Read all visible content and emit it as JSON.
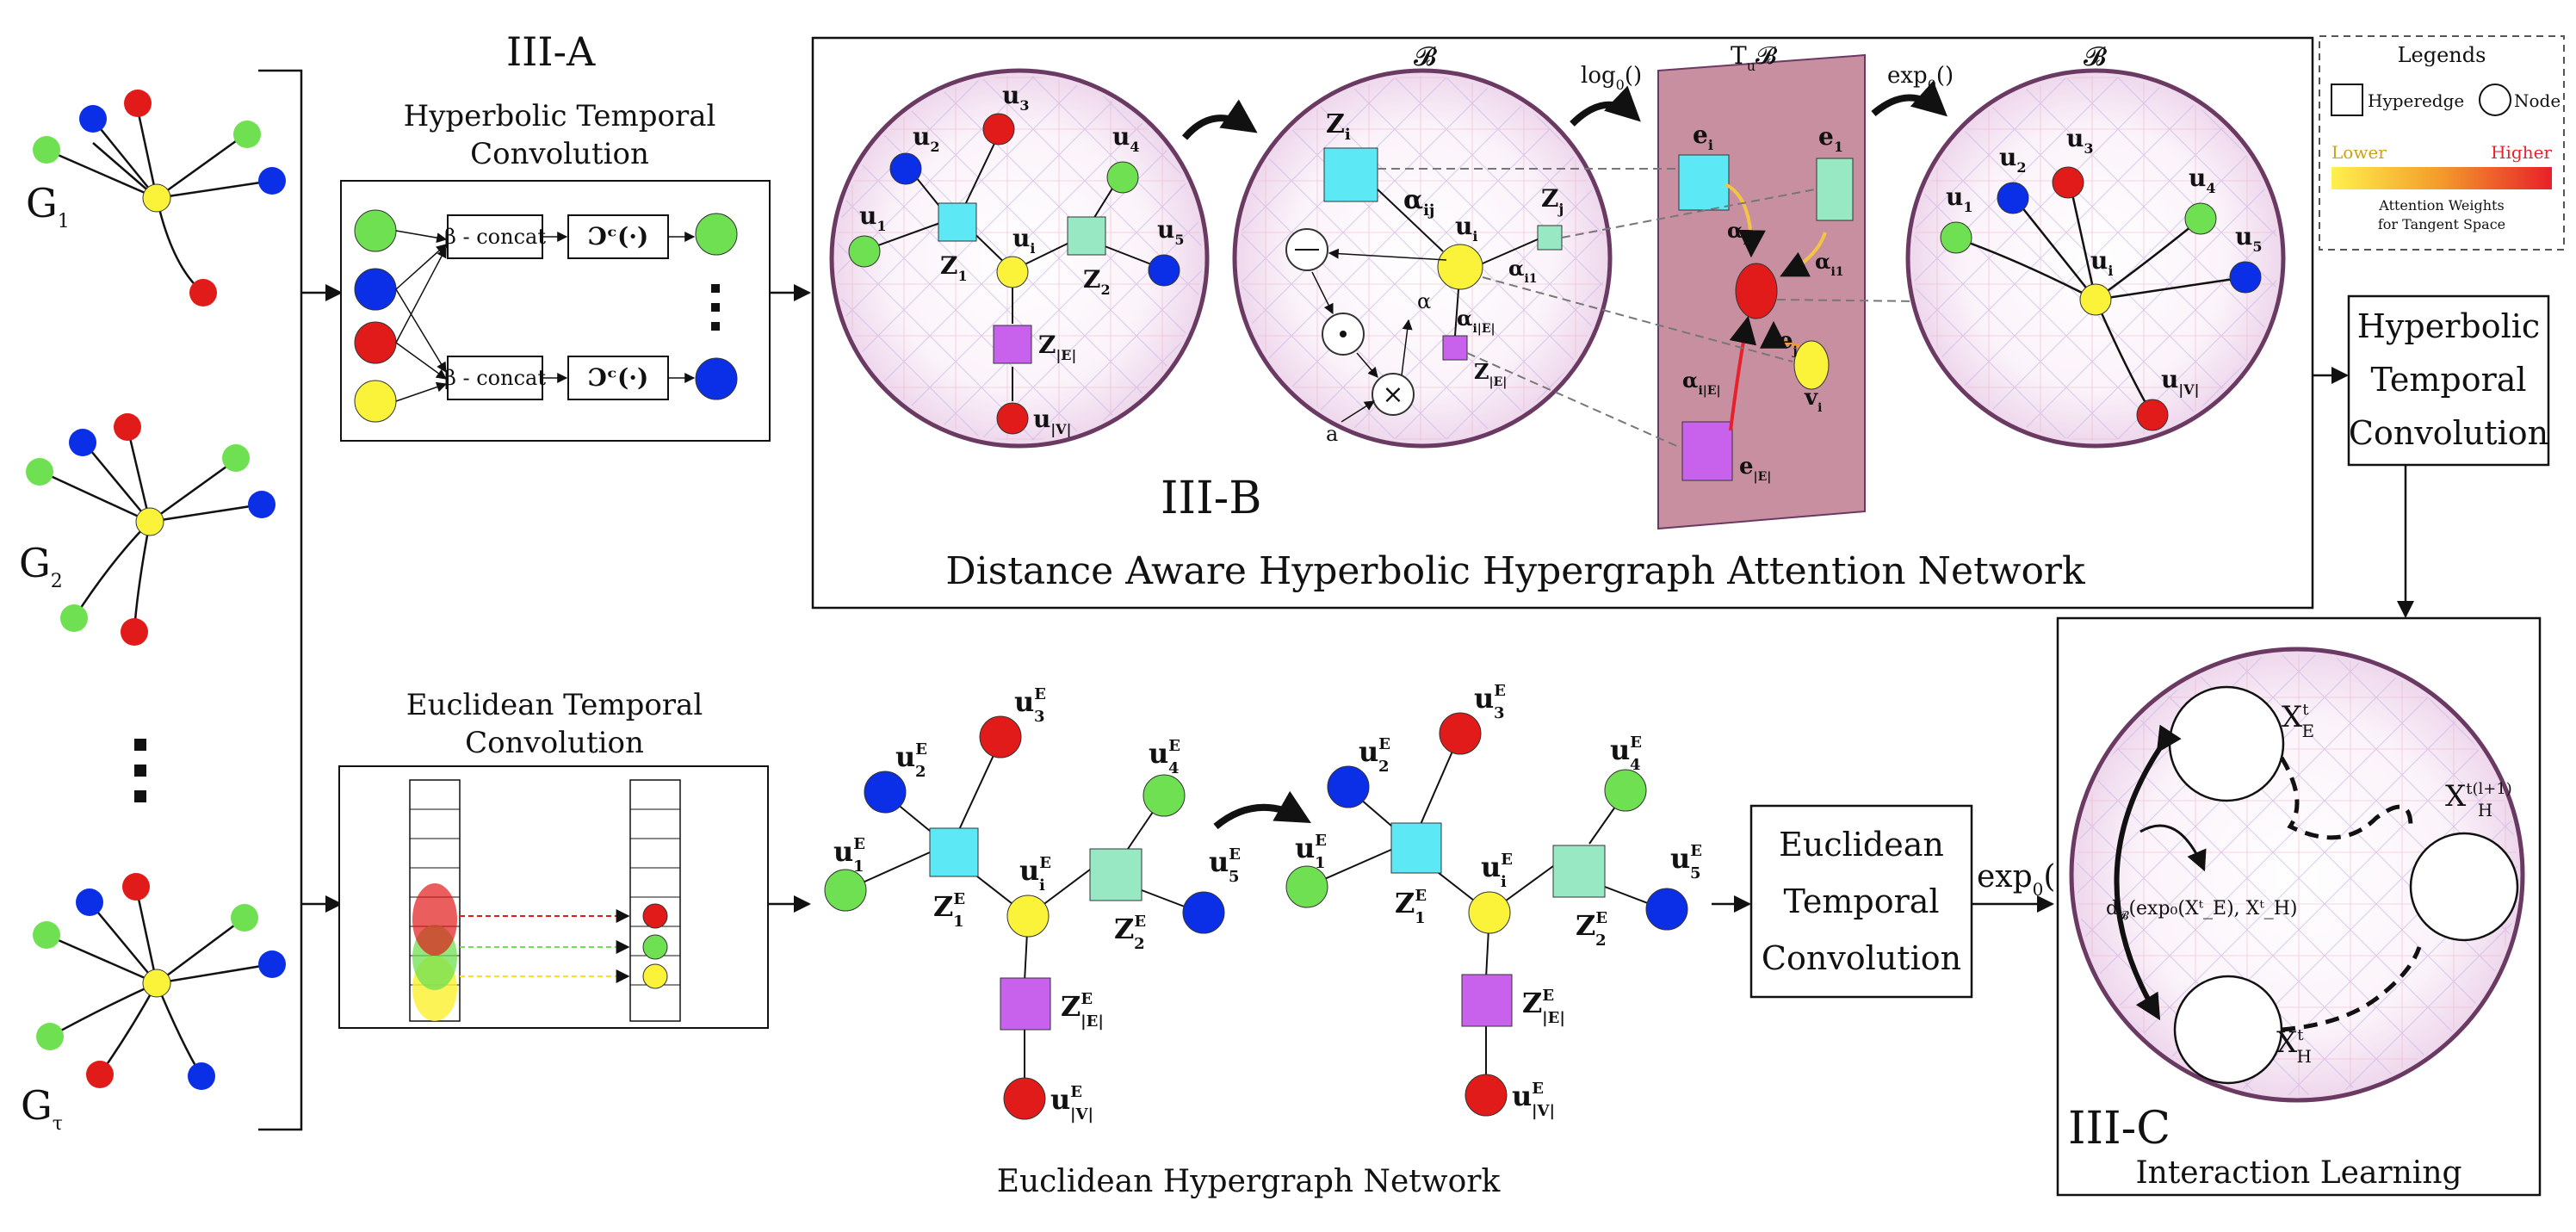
{
  "sections": {
    "a_label": "III-A",
    "b_label": "III-B",
    "c_label": "III-C"
  },
  "snapshots": {
    "g1": "G",
    "g1_sub": "1",
    "g2": "G",
    "g2_sub": "2",
    "gt": "G",
    "gt_sub": "τ"
  },
  "hyp_temporal_conv": {
    "title_line1": "Hyperbolic Temporal",
    "title_line2": "Convolution",
    "concat1": "β - concat",
    "concat2": "β - concat",
    "op1": "Ɔᶜ(·)",
    "op2": "Ɔᶜ(·)"
  },
  "euc_temporal_conv": {
    "title_line1": "Euclidean Temporal",
    "title_line2": "Convolution"
  },
  "dahhan": {
    "title": "Distance Aware Hyperbolic Hypergraph Attention Network",
    "ball_label": "𝓑",
    "tangent_label": "T",
    "tangent_sub": "u",
    "log_map": "log",
    "log_sub": "0",
    "log_paren": "()",
    "exp_map": "exp",
    "exp_sub": "0",
    "exp_paren": "()",
    "u1": "u",
    "u1_sub": "1",
    "u2": "u",
    "u2_sub": "2",
    "u3": "u",
    "u3_sub": "3",
    "u4": "u",
    "u4_sub": "4",
    "u5": "u",
    "u5_sub": "5",
    "ui": "u",
    "ui_sub": "i",
    "uv": "u",
    "uv_sub": "|V|",
    "z1": "Z",
    "z1_sub": "1",
    "z2": "Z",
    "z2_sub": "2",
    "ze": "Z",
    "ze_sub": "|E|",
    "zi": "Z",
    "zi_sub": "i",
    "zj": "Z",
    "zj_sub": "j",
    "aij": "α",
    "aij_sub": "ij",
    "ai1": "α",
    "ai1_sub": "i1",
    "aie": "α",
    "aie_sub": "i|E|",
    "a_small": "α",
    "a_letter": "a",
    "e_i": "e",
    "e_i_sub": "i",
    "e_1": "e",
    "e_1_sub": "1",
    "e_j": "e",
    "e_j_sub": "j",
    "e_e": "e",
    "e_e_sub": "|E|",
    "v_i": "v",
    "v_i_sub": "i"
  },
  "legend": {
    "title": "Legends",
    "hyperedge": "Hyperedge",
    "node": "Node",
    "lower": "Lower",
    "higher": "Higher",
    "caption_line1": "Attention Weights",
    "caption_line2": "for Tangent Space",
    "gradient_start": "#fff14d",
    "gradient_end": "#e8202a"
  },
  "hyp_conv_box": {
    "line1": "Hyperbolic",
    "line2": "Temporal",
    "line3": "Convolution"
  },
  "euc_conv_box": {
    "line1": "Euclidean",
    "line2": "Temporal",
    "line3": "Convolution"
  },
  "exp_label": "exp",
  "exp_label_sub": "0",
  "exp_label_paren": "()",
  "euclidean_network_title": "Euclidean Hypergraph Network",
  "interaction": {
    "title": "Interaction Learning",
    "xe": "X",
    "xe_sub": "E",
    "xe_sup": "t",
    "xh": "X",
    "xh_sub": "H",
    "xh_sup": "t",
    "xh_next": "X",
    "xh_next_sub": "H",
    "xh_next_sup": "t(l+1)",
    "distance": "d",
    "distance_sub": "𝓑",
    "distance_rest": "(exp₀(Xᵗ_E), Xᵗ_H)"
  },
  "euclid_graph": {
    "u1": "u",
    "u1_sup": "E",
    "u1_sub": "1",
    "u2": "u",
    "u2_sup": "E",
    "u2_sub": "2",
    "u3": "u",
    "u3_sup": "E",
    "u3_sub": "3",
    "u4": "u",
    "u4_sup": "E",
    "u4_sub": "4",
    "u5": "u",
    "u5_sup": "E",
    "u5_sub": "5",
    "ui": "u",
    "ui_sup": "E",
    "ui_sub": "i",
    "uv": "u",
    "uv_sup": "E",
    "uv_sub": "|V|",
    "z1": "Z",
    "z1_sup": "E",
    "z1_sub": "1",
    "z2": "Z",
    "z2_sup": "E",
    "z2_sub": "2",
    "ze": "Z",
    "ze_sup": "E",
    "ze_sub": "|E|"
  },
  "colors": {
    "node_green": "#6ee051",
    "node_blue": "#0a2fe6",
    "node_red": "#e11a1a",
    "node_yellow": "#fbf23a",
    "edge_cyan": "#5de8f5",
    "edge_mint": "#98e8c4",
    "edge_purple": "#c862ec",
    "tangent_plane": "#c88fa0"
  }
}
